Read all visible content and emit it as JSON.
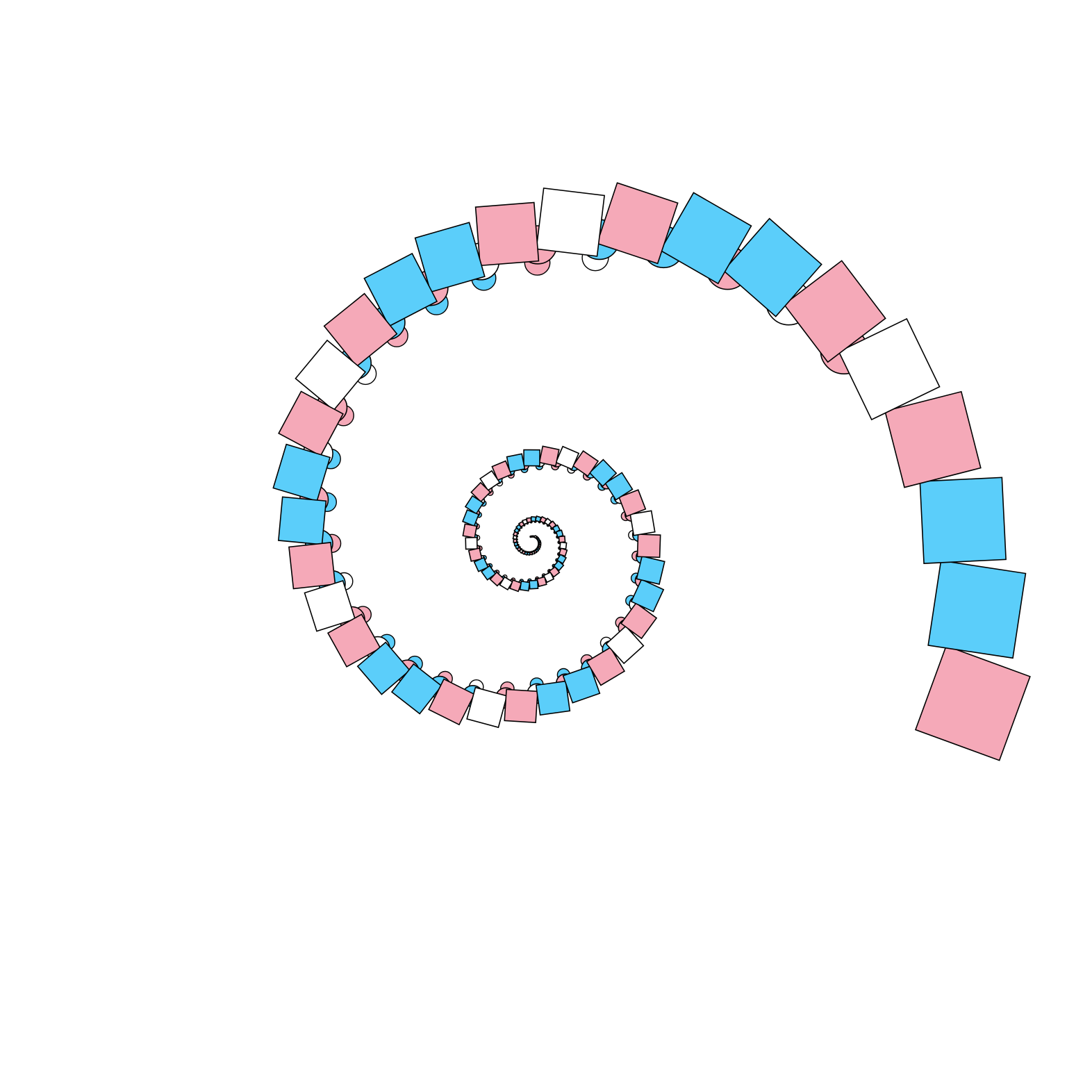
{
  "palette": [
    "#5bcefa",
    "#f5a9b8",
    "#ffffff",
    "#f5a9b8",
    "#5bcefa"
  ]
}
